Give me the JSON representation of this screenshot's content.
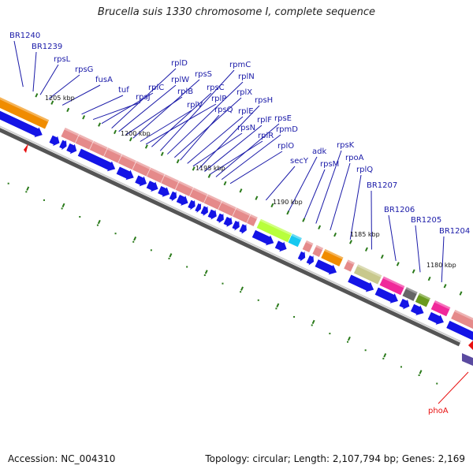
{
  "title": "Brucella suis 1330 chromosome I, complete sequence",
  "footer": {
    "accession": "Accession: NC_004310",
    "summary": "Topology: circular; Length: 2,107,794 bp; Genes: 2,169"
  },
  "tick_labels": [
    "1205 kbp",
    "1200 kbp",
    "1195 kbp",
    "1190 kbp",
    "1185 kbp",
    "1180 kbp"
  ],
  "gene_labels": [
    "BR1240",
    "BR1239",
    "rpsL",
    "rpsG",
    "fusA",
    "tuf",
    "rpsJ",
    "rplC",
    "rplD",
    "rplW",
    "rplB",
    "rpsS",
    "rplV",
    "rplP",
    "rpsC",
    "rpmC",
    "rplN",
    "rplX",
    "rpsQ",
    "rplE",
    "rpsN",
    "rpsH",
    "rplF",
    "rplR",
    "rpsE",
    "rpmD",
    "rplO",
    "secY",
    "adk",
    "rpsM",
    "rpsK",
    "rpoA",
    "rplQ",
    "BR1207",
    "BR1206",
    "BR1205",
    "BR1204"
  ],
  "bottom_label": "phoA",
  "colors": {
    "label_blue": "#1a1aa8",
    "gene_arrow_blue": "#1414e6",
    "ribosomal_pink": "#e58a8a",
    "orange": "#f08c00",
    "lime": "#b8ff3c",
    "cyan": "#16c8f0",
    "magenta": "#f0289a",
    "olive": "#c8c88c",
    "dark_gray": "#666666",
    "olive_green": "#6a9a1e",
    "red_marker": "#e81010",
    "backbone_gray": "#888888",
    "tick_green": "#2a7a1a"
  }
}
